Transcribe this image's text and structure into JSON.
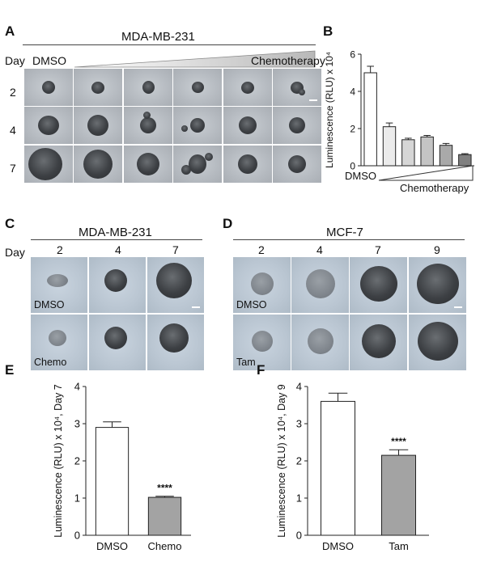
{
  "panels": {
    "A": {
      "letter": "A",
      "title": "MDA-MB-231",
      "day_header": "Day",
      "dmso": "DMSO",
      "chemo": "Chemotherapy",
      "days": [
        "2",
        "4",
        "7"
      ]
    },
    "B": {
      "letter": "B"
    },
    "C": {
      "letter": "C",
      "title": "MDA-MB-231",
      "day_header": "Day",
      "days": [
        "2",
        "4",
        "7"
      ],
      "row_labels": [
        "DMSO",
        "Chemo"
      ]
    },
    "D": {
      "letter": "D",
      "title": "MCF-7",
      "days": [
        "2",
        "4",
        "7",
        "9"
      ],
      "row_labels": [
        "DMSO",
        "Tam"
      ]
    },
    "E": {
      "letter": "E"
    },
    "F": {
      "letter": "F"
    }
  },
  "chart_data": [
    {
      "id": "B",
      "type": "bar",
      "categories": [
        "DMSO",
        "",
        "",
        "",
        "",
        ""
      ],
      "values": [
        5.0,
        2.1,
        1.4,
        1.55,
        1.1,
        0.6
      ],
      "errors": [
        0.35,
        0.2,
        0.08,
        0.08,
        0.1,
        0.05
      ],
      "fills": [
        "#ffffff",
        "#ebebeb",
        "#d6d6d6",
        "#c4c4c4",
        "#a9a9a9",
        "#808080"
      ],
      "ylabel": "Luminescence (RLU) x 10⁴",
      "yticks": [
        "0",
        "2",
        "4",
        "6"
      ],
      "ylim": [
        0,
        6
      ],
      "xlabel_dmso": "DMSO",
      "xlabel_chemo": "Chemotherapy"
    },
    {
      "id": "E",
      "type": "bar",
      "categories": [
        "DMSO",
        "Chemo"
      ],
      "values": [
        2.9,
        1.02
      ],
      "errors": [
        0.15,
        0.03
      ],
      "fills": [
        "#ffffff",
        "#a3a3a3"
      ],
      "significance": "****",
      "ylabel": "Luminescence (RLU) x 10⁴, Day 7",
      "yticks": [
        "0",
        "1",
        "2",
        "3",
        "4"
      ],
      "ylim": [
        0,
        4
      ]
    },
    {
      "id": "F",
      "type": "bar",
      "categories": [
        "DMSO",
        "Tam"
      ],
      "values": [
        3.6,
        2.15
      ],
      "errors": [
        0.22,
        0.15
      ],
      "fills": [
        "#ffffff",
        "#a3a3a3"
      ],
      "significance": "****",
      "ylabel": "Luminescence (RLU) x 10⁴, Day 9",
      "yticks": [
        "0",
        "1",
        "2",
        "3",
        "4"
      ],
      "ylim": [
        0,
        4
      ]
    }
  ]
}
